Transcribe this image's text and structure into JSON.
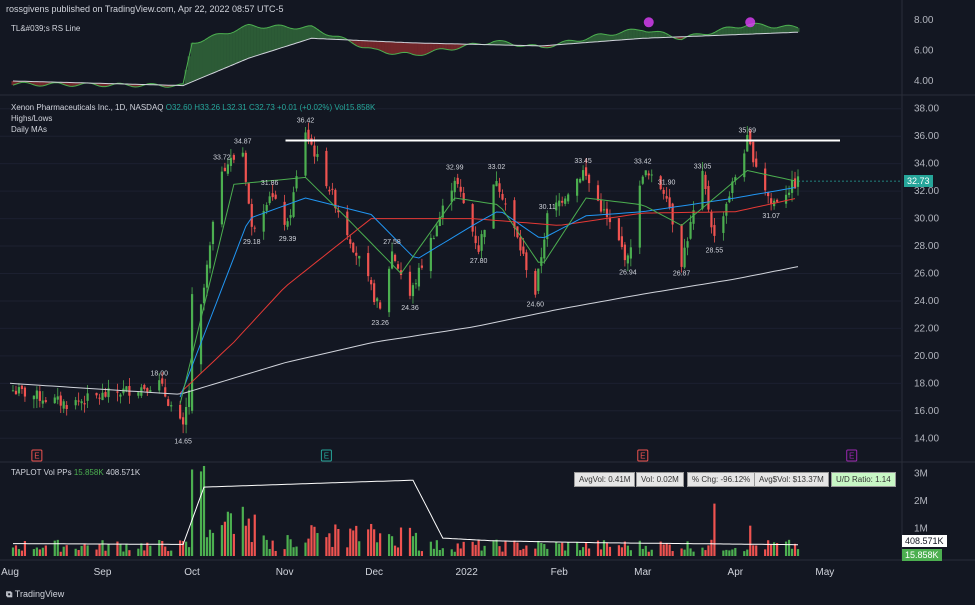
{
  "header": {
    "published": "rossgivens published on TradingView.com, Apr 22, 2022 08:57 UTC-5"
  },
  "rs_pane": {
    "title": "TL&#039;s RS Line",
    "axis_ticks": [
      "8.00",
      "6.00",
      "4.00"
    ]
  },
  "price_pane": {
    "symbol_title": "Xenon Pharmaceuticals Inc., 1D, NASDAQ",
    "ohlc": {
      "o": "O32.60",
      "h": "H33.26",
      "l": "L32.31",
      "c": "C32.73",
      "chg": "+0.01 (+0.02%)",
      "vol": "Vol15.858K"
    },
    "indicator1": "Highs/Lows",
    "indicator2": "Daily MAs",
    "current_price": "32.73",
    "axis_ticks": [
      "38.00",
      "36.00",
      "34.00",
      "32.00",
      "30.00",
      "28.00",
      "26.00",
      "24.00",
      "22.00",
      "20.00",
      "18.00",
      "16.00",
      "14.00"
    ],
    "earnings_marker": "E"
  },
  "volume_pane": {
    "title": "TAPLOT Vol PPs",
    "val1": "15.858K",
    "val2": "408.571K",
    "stats": [
      "AvgVol: 0.41M",
      "Vol: 0.02M",
      "% Chg: -96.12%",
      "Avg$Vol: $13.37M",
      "U/D Ratio: 1.14"
    ],
    "axis_ticks": [
      "3M",
      "2M",
      "1M"
    ],
    "tag_avg": "408.571K",
    "tag_vol": "15.858K"
  },
  "x_axis": [
    "Aug",
    "Sep",
    "Oct",
    "Nov",
    "Dec",
    "2022",
    "Feb",
    "Mar",
    "Apr",
    "May"
  ],
  "footer": "TradingView",
  "colors": {
    "up": "#26a69a",
    "up_bright": "#4caf50",
    "down": "#ef5350",
    "ma10": "#4caf50",
    "ma21": "#2196f3",
    "ma50": "#e53935",
    "ma200": "#d1d4dc",
    "bg": "#131722"
  },
  "chart_data": {
    "type": "candlestick",
    "title": "Xenon Pharmaceuticals Inc., 1D, NASDAQ",
    "ylim": [
      13,
      39
    ],
    "resistance_level": 35.69,
    "high_low_labels": [
      {
        "date": "Sep 20",
        "value": 18.0,
        "kind": "high"
      },
      {
        "date": "Sep 28",
        "value": 14.65,
        "kind": "low"
      },
      {
        "date": "Oct 11",
        "value": 33.72,
        "kind": "high"
      },
      {
        "date": "Oct 18",
        "value": 34.87,
        "kind": "high"
      },
      {
        "date": "Oct 21",
        "value": 29.18,
        "kind": "low"
      },
      {
        "date": "Oct 27",
        "value": 31.86,
        "kind": "high"
      },
      {
        "date": "Nov 2",
        "value": 29.39,
        "kind": "low"
      },
      {
        "date": "Nov 8",
        "value": 36.42,
        "kind": "high"
      },
      {
        "date": "Dec 3",
        "value": 23.26,
        "kind": "low"
      },
      {
        "date": "Dec 7",
        "value": 27.58,
        "kind": "high"
      },
      {
        "date": "Dec 13",
        "value": 24.36,
        "kind": "low"
      },
      {
        "date": "Dec 28",
        "value": 32.99,
        "kind": "high"
      },
      {
        "date": "Jan 5",
        "value": 27.8,
        "kind": "low"
      },
      {
        "date": "Jan 11",
        "value": 33.02,
        "kind": "high"
      },
      {
        "date": "Jan 24",
        "value": 24.6,
        "kind": "low"
      },
      {
        "date": "Jan 28",
        "value": 30.11,
        "kind": "high"
      },
      {
        "date": "Feb 9",
        "value": 33.45,
        "kind": "high"
      },
      {
        "date": "Feb 24",
        "value": 26.94,
        "kind": "low"
      },
      {
        "date": "Mar 1",
        "value": 33.42,
        "kind": "high"
      },
      {
        "date": "Mar 9",
        "value": 31.9,
        "kind": "high"
      },
      {
        "date": "Mar 14",
        "value": 26.87,
        "kind": "low"
      },
      {
        "date": "Mar 21",
        "value": 33.05,
        "kind": "high"
      },
      {
        "date": "Mar 25",
        "value": 28.55,
        "kind": "low"
      },
      {
        "date": "Apr 5",
        "value": 35.69,
        "kind": "high"
      },
      {
        "date": "Apr 13",
        "value": 31.07,
        "kind": "low"
      }
    ],
    "ma_series": [
      {
        "name": "MA200",
        "points": [
          [
            "Aug 1",
            18.0
          ],
          [
            "Sep 27",
            17.2
          ],
          [
            "Nov 1",
            19.5
          ],
          [
            "Dec 1",
            21.0
          ],
          [
            "Jan 3",
            22.1
          ],
          [
            "Feb 1",
            23.4
          ],
          [
            "Mar 1",
            24.5
          ],
          [
            "Apr 1",
            25.6
          ],
          [
            "Apr 22",
            26.5
          ]
        ]
      },
      {
        "name": "MA50",
        "points": [
          [
            "Sep 27",
            17.3
          ],
          [
            "Oct 15",
            21.0
          ],
          [
            "Nov 1",
            25.0
          ],
          [
            "Nov 30",
            30.0
          ],
          [
            "Jan 3",
            30.0
          ],
          [
            "Feb 1",
            29.5
          ],
          [
            "Mar 1",
            30.4
          ],
          [
            "Apr 1",
            30.5
          ],
          [
            "Apr 22",
            31.5
          ]
        ]
      },
      {
        "name": "MA21",
        "points": [
          [
            "Sep 27",
            17.0
          ],
          [
            "Oct 20",
            30.0
          ],
          [
            "Nov 8",
            31.5
          ],
          [
            "Nov 30",
            30.3
          ],
          [
            "Dec 15",
            27.0
          ],
          [
            "Jan 3",
            29.5
          ],
          [
            "Jan 12",
            30.6
          ],
          [
            "Jan 26",
            28.5
          ],
          [
            "Feb 10",
            30.2
          ],
          [
            "Mar 1",
            30.5
          ],
          [
            "Apr 1",
            31.5
          ],
          [
            "Apr 22",
            32.3
          ]
        ]
      },
      {
        "name": "MA10",
        "points": [
          [
            "Sep 27",
            16.5
          ],
          [
            "Oct 15",
            32.5
          ],
          [
            "Nov 8",
            33.0
          ],
          [
            "Nov 22",
            30.0
          ],
          [
            "Dec 10",
            26.0
          ],
          [
            "Dec 28",
            31.5
          ],
          [
            "Jan 12",
            31.0
          ],
          [
            "Jan 26",
            26.5
          ],
          [
            "Feb 10",
            31.5
          ],
          [
            "Mar 1",
            31.0
          ],
          [
            "Mar 14",
            29.5
          ],
          [
            "Apr 5",
            33.5
          ],
          [
            "Apr 22",
            32.7
          ]
        ]
      }
    ],
    "volume": {
      "avg_vol": "0.41M",
      "vol": "0.02M",
      "ud_ratio": 1.14,
      "ylim": [
        0,
        3.3
      ]
    }
  }
}
